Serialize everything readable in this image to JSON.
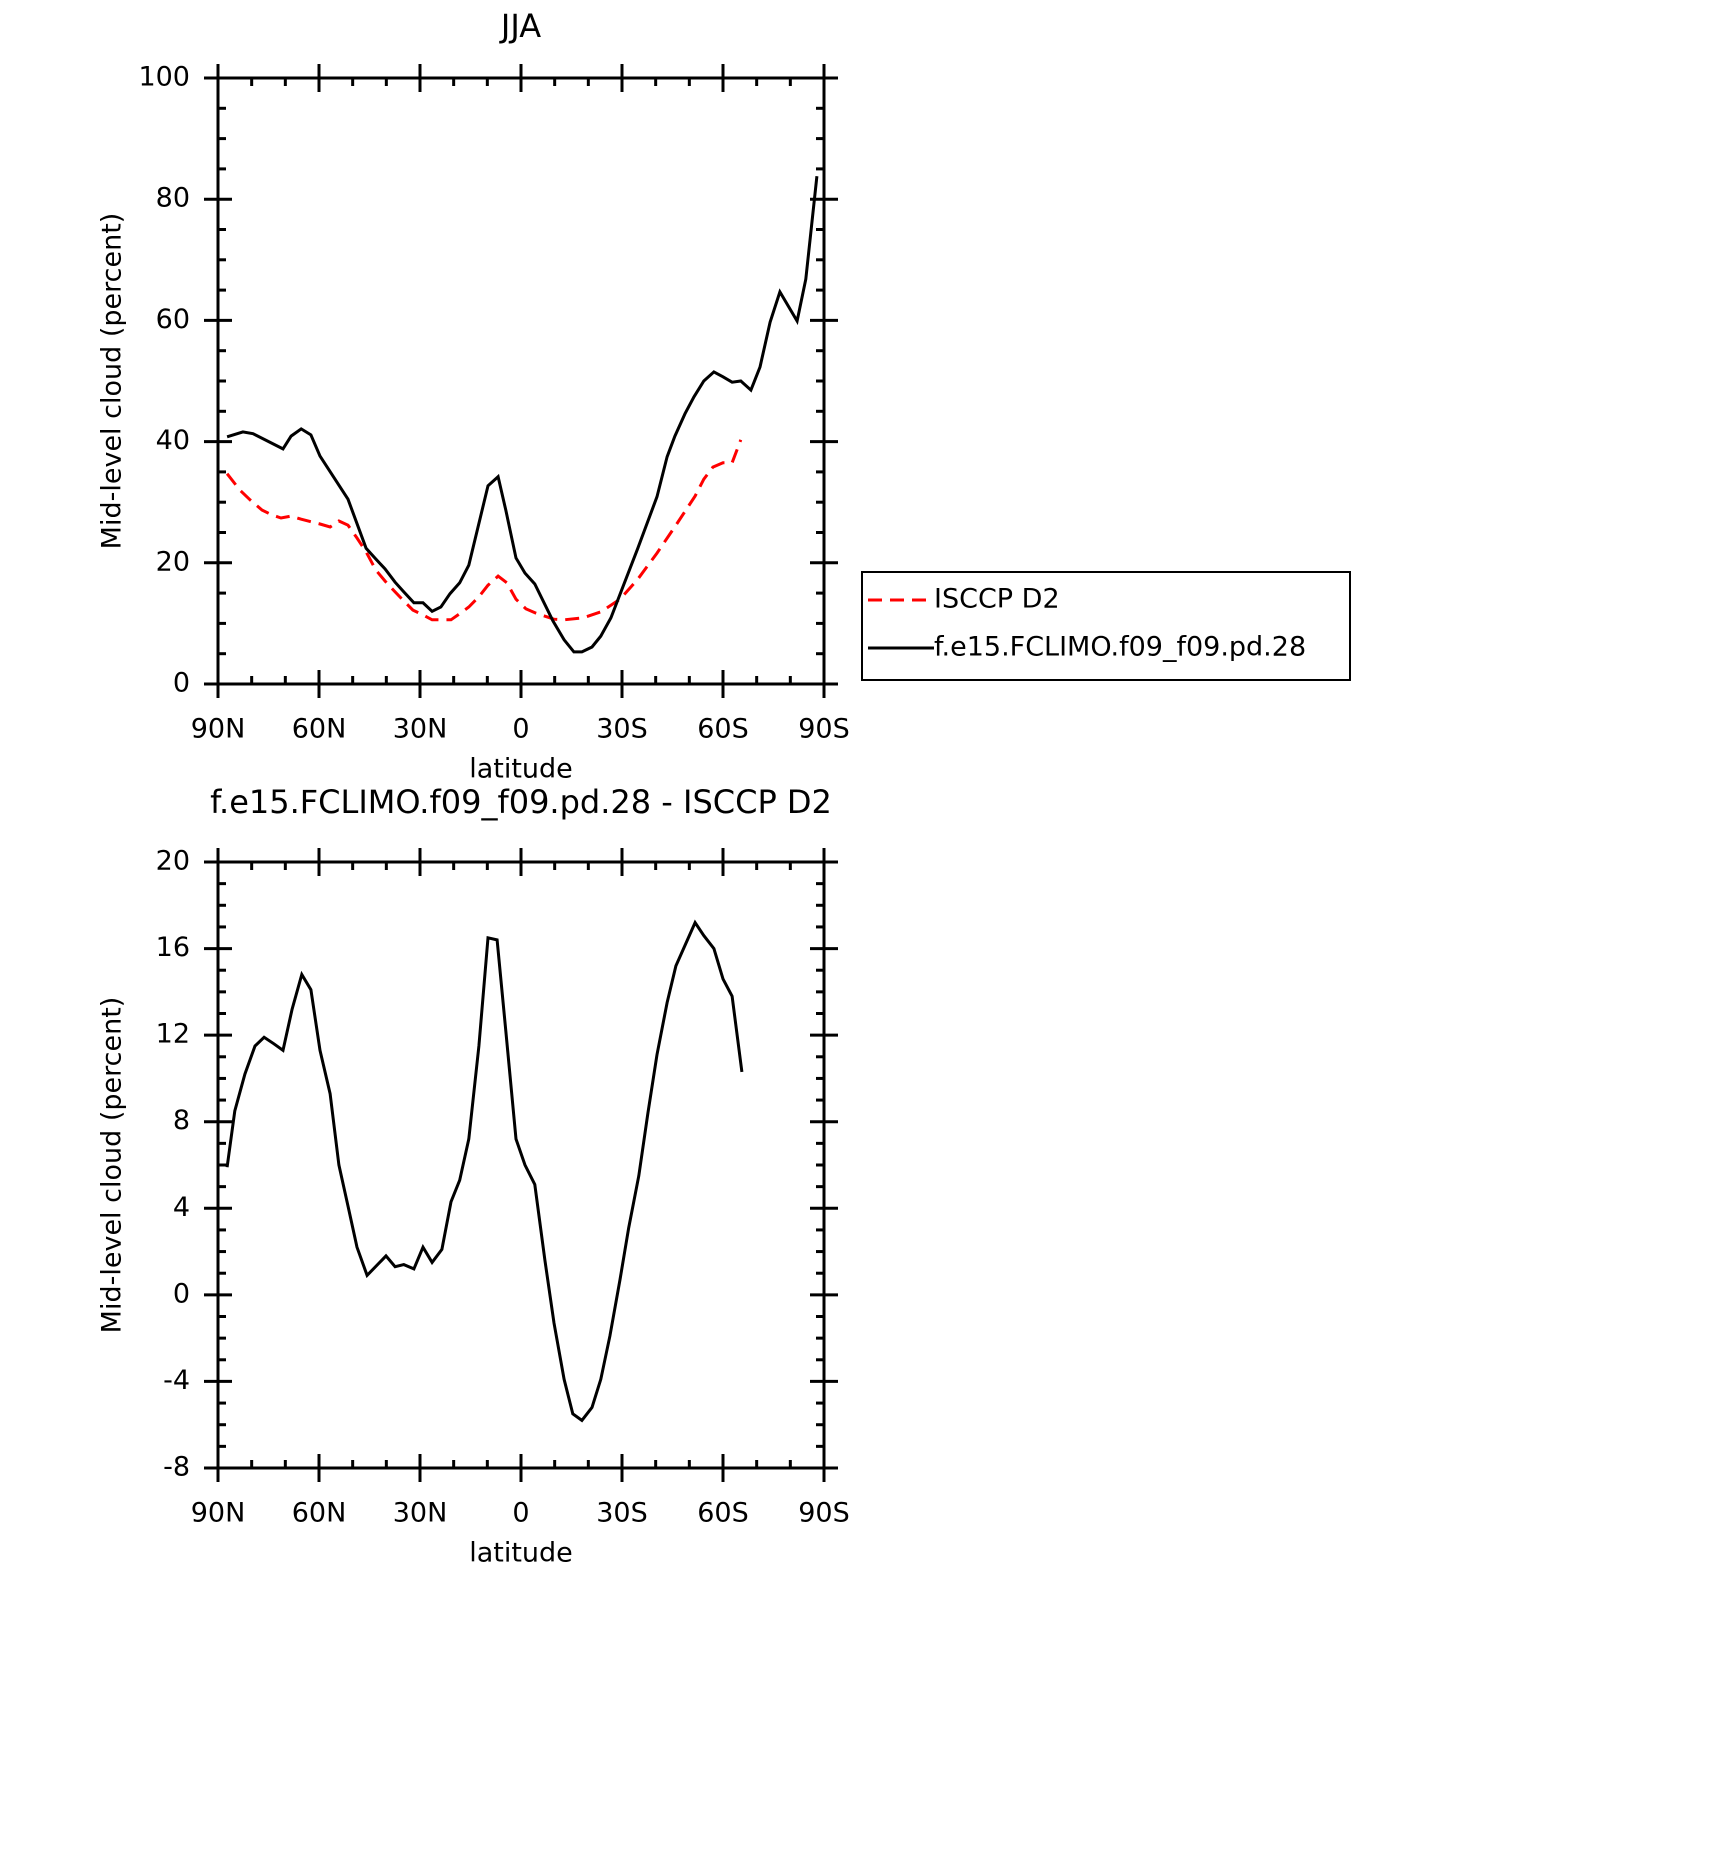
{
  "chart_data": [
    {
      "type": "line",
      "title": "JJA",
      "xlabel": "latitude",
      "ylabel": "Mid-level cloud (percent)",
      "xlim": [
        90,
        -90
      ],
      "xticks": [
        {
          "value": 90,
          "label": "90N"
        },
        {
          "value": 60,
          "label": "60N"
        },
        {
          "value": 30,
          "label": "30N"
        },
        0,
        {
          "value": -30,
          "label": "30S"
        },
        {
          "value": -60,
          "label": "60S"
        },
        {
          "value": -90,
          "label": "90S"
        }
      ],
      "ylim": [
        0,
        100
      ],
      "yticks": [
        0,
        20,
        40,
        60,
        80,
        100
      ],
      "legend": "right",
      "series": [
        {
          "name": "ISCCP D2",
          "color": "#ff0000",
          "dash": true,
          "x": [
            87.3,
            83.5,
            80.5,
            76.9,
            74.0,
            71.3,
            68.3,
            65.3,
            59.7,
            56.7,
            54.1,
            51.4,
            48.7,
            46.0,
            43.1,
            40.4,
            37.4,
            34.8,
            32.1,
            29.1,
            26.4,
            23.8,
            20.8,
            18.2,
            15.5,
            12.5,
            9.8,
            6.8,
            4.2,
            1.5,
            -1.5,
            -4.4,
            -9.8,
            -12.8,
            -18.4,
            -23.7,
            -29.4,
            -34.7,
            -40.4,
            -46.0,
            -51.7,
            -54.3,
            -57.0,
            -60.0,
            -62.7,
            -65.3
          ],
          "values": [
            34.7,
            32.0,
            30.4,
            28.7,
            27.9,
            27.4,
            27.7,
            27.2,
            26.4,
            25.9,
            26.9,
            26.2,
            24.1,
            21.8,
            18.8,
            17.0,
            15.2,
            13.7,
            12.2,
            11.4,
            10.6,
            10.6,
            10.6,
            11.6,
            12.7,
            14.4,
            16.3,
            17.8,
            16.7,
            14.0,
            12.4,
            11.7,
            10.7,
            10.6,
            10.9,
            11.9,
            14.0,
            17.3,
            21.6,
            26.2,
            31.0,
            33.8,
            35.8,
            36.5,
            36.5,
            40.3
          ]
        },
        {
          "name": "f.e15.FCLIMO.f09_f09.pd.28",
          "color": "#000000",
          "dash": false,
          "x": [
            87.3,
            82.6,
            79.6,
            70.7,
            68.3,
            65.3,
            62.4,
            59.7,
            51.4,
            46.0,
            43.4,
            40.4,
            37.4,
            34.8,
            31.8,
            29.1,
            26.4,
            23.8,
            21.1,
            18.2,
            15.5,
            9.8,
            6.8,
            4.5,
            1.5,
            -1.2,
            -4.1,
            -9.5,
            -12.8,
            -15.7,
            -18.1,
            -21.1,
            -23.7,
            -26.7,
            -34.7,
            -40.4,
            -43.4,
            -45.7,
            -48.7,
            -51.4,
            -54.3,
            -57.3,
            -60.0,
            -62.7,
            -65.3,
            -68.3,
            -71.0,
            -74.0,
            -76.9,
            -82.0,
            -84.6,
            -87.9
          ],
          "values": [
            40.8,
            41.6,
            41.3,
            38.8,
            40.9,
            42.1,
            41.1,
            37.6,
            30.5,
            22.4,
            20.8,
            19.0,
            16.8,
            15.2,
            13.4,
            13.4,
            12.0,
            12.7,
            14.9,
            16.7,
            19.6,
            32.7,
            34.2,
            28.7,
            20.8,
            18.3,
            16.5,
            10.4,
            7.3,
            5.3,
            5.3,
            6.1,
            7.9,
            10.9,
            22.4,
            30.9,
            37.5,
            40.9,
            44.6,
            47.4,
            50.0,
            51.5,
            50.7,
            49.8,
            50.0,
            48.5,
            52.3,
            59.7,
            64.7,
            59.9,
            66.8,
            83.8
          ]
        }
      ]
    },
    {
      "type": "line",
      "title": "f.e15.FCLIMO.f09_f09.pd.28 - ISCCP D2",
      "xlabel": "latitude",
      "ylabel": "Mid-level cloud (percent)",
      "xlim": [
        90,
        -90
      ],
      "xticks": [
        {
          "value": 90,
          "label": "90N"
        },
        {
          "value": 60,
          "label": "60N"
        },
        {
          "value": 30,
          "label": "30N"
        },
        0,
        {
          "value": -30,
          "label": "30S"
        },
        {
          "value": -60,
          "label": "60S"
        },
        {
          "value": -90,
          "label": "90S"
        }
      ],
      "ylim": [
        -8,
        20
      ],
      "yticks": [
        -8,
        -4,
        0,
        4,
        8,
        12,
        16,
        20
      ],
      "series": [
        {
          "color": "#000000",
          "dash": false,
          "x": [
            87.3,
            85.0,
            82.0,
            79.0,
            76.3,
            73.4,
            70.7,
            68.0,
            65.1,
            62.4,
            59.7,
            56.7,
            54.1,
            51.4,
            48.7,
            45.7,
            40.1,
            37.4,
            34.8,
            31.8,
            29.1,
            26.4,
            23.5,
            20.8,
            18.2,
            15.5,
            12.5,
            9.8,
            7.1,
            4.5,
            1.5,
            -1.2,
            -4.1,
            -7.1,
            -9.8,
            -12.8,
            -15.4,
            -18.1,
            -21.1,
            -23.7,
            -26.4,
            -29.4,
            -32.0,
            -35.0,
            -37.7,
            -40.4,
            -43.4,
            -46.0,
            -51.7,
            -54.3,
            -57.3,
            -60.0,
            -62.7,
            -65.6
          ],
          "values": [
            5.9,
            8.5,
            10.2,
            11.5,
            11.9,
            11.6,
            11.3,
            13.2,
            14.8,
            14.1,
            11.3,
            9.3,
            6.0,
            4.1,
            2.2,
            0.9,
            1.8,
            1.3,
            1.4,
            1.2,
            2.2,
            1.5,
            2.1,
            4.3,
            5.3,
            7.2,
            11.5,
            16.5,
            16.4,
            12.2,
            7.2,
            6.0,
            5.1,
            1.6,
            -1.3,
            -3.9,
            -5.5,
            -5.8,
            -5.2,
            -3.9,
            -1.9,
            0.7,
            3.1,
            5.5,
            8.4,
            11.1,
            13.5,
            15.2,
            17.2,
            16.6,
            16.0,
            14.6,
            13.8,
            10.3
          ]
        }
      ]
    }
  ]
}
